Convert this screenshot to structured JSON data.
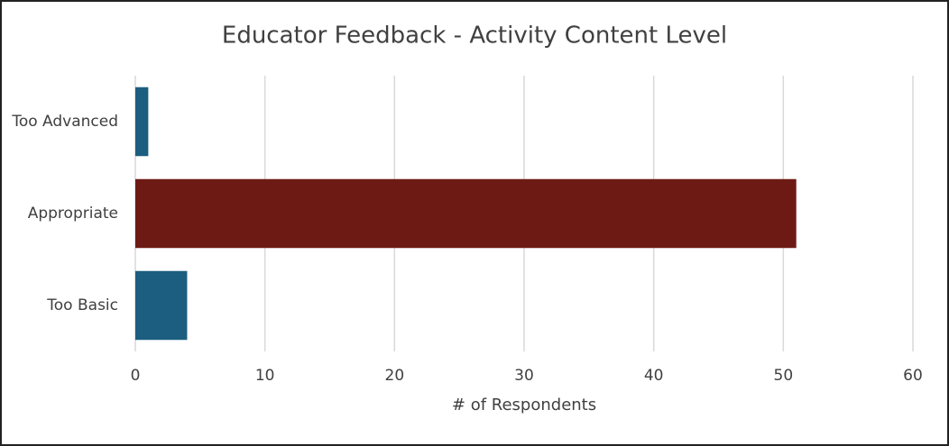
{
  "chart_data": {
    "type": "bar",
    "orientation": "horizontal",
    "title": "Educator Feedback - Activity Content Level",
    "x_label": "# of Respondents",
    "categories": [
      "Too Advanced",
      "Appropriate",
      "Too Basic"
    ],
    "values": [
      1,
      51,
      4
    ],
    "colors": [
      "#1b5e7f",
      "#6e1a14",
      "#1b5e7f"
    ],
    "xlim": [
      0,
      60
    ],
    "xticks": [
      0,
      10,
      20,
      30,
      40,
      50,
      60
    ],
    "grid": true
  }
}
